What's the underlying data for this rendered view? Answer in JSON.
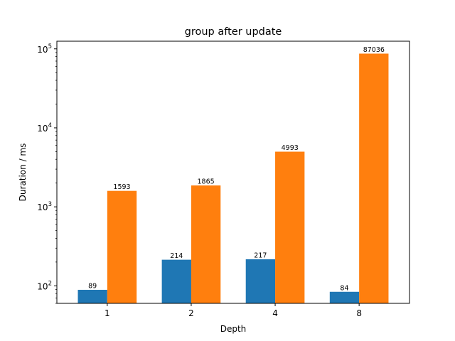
{
  "chart_data": {
    "type": "bar",
    "title": "group after update",
    "xlabel": "Depth",
    "ylabel": "Duration / ms",
    "yscale": "log",
    "ylim": [
      60,
      125000
    ],
    "yticks": [
      100,
      1000,
      10000,
      100000
    ],
    "ytick_labels": [
      {
        "base": "10",
        "exp": "2"
      },
      {
        "base": "10",
        "exp": "3"
      },
      {
        "base": "10",
        "exp": "4"
      },
      {
        "base": "10",
        "exp": "5"
      }
    ],
    "categories": [
      "1",
      "2",
      "4",
      "8"
    ],
    "series": [
      {
        "color": "#1f77b4",
        "values": [
          89,
          214,
          217,
          84
        ],
        "labels": [
          "89",
          "214",
          "217",
          "84"
        ]
      },
      {
        "color": "#ff7f0e",
        "values": [
          1593,
          1865,
          4993,
          87036
        ],
        "labels": [
          "1593",
          "1865",
          "4993",
          "87036"
        ]
      }
    ],
    "grid": false,
    "legend": "none"
  }
}
